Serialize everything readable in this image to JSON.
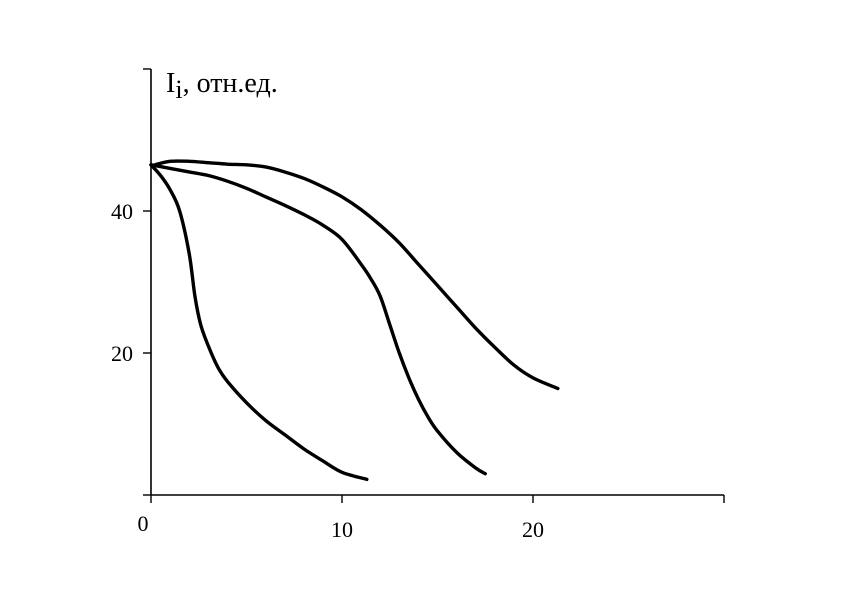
{
  "chart_data": {
    "type": "line",
    "title": "",
    "xlabel": "",
    "ylabel": {
      "main": "I",
      "subscript": "i",
      "rest": ", отн.ед."
    },
    "xlim": [
      0,
      30
    ],
    "ylim": [
      0,
      60
    ],
    "x_ticks": [
      0,
      10,
      20,
      30
    ],
    "x_tick_labels": [
      "0",
      "10",
      "20",
      ""
    ],
    "y_ticks": [
      0,
      20,
      40,
      60
    ],
    "y_tick_labels": [
      "",
      "20",
      "40",
      ""
    ],
    "grid": false,
    "legend": "none",
    "series": [
      {
        "color": "#000000",
        "x": [
          0,
          0.5,
          1.0,
          1.5,
          2.0,
          2.3,
          2.6,
          3.0,
          3.5,
          4.0,
          5.0,
          6.0,
          7.0,
          8.0,
          9.0,
          10.0,
          11.3
        ],
        "y": [
          46.5,
          45,
          43,
          40,
          34,
          28,
          24,
          21,
          18,
          16,
          13,
          10.5,
          8.5,
          6.5,
          4.8,
          3.2,
          2.2
        ]
      },
      {
        "color": "#000000",
        "x": [
          0,
          1,
          2,
          3,
          4,
          5,
          6,
          7,
          8,
          9,
          10,
          11,
          11.5,
          12,
          12.5,
          13,
          13.5,
          14,
          14.5,
          15,
          16,
          17,
          17.5
        ],
        "y": [
          46.5,
          46,
          45.5,
          45,
          44.2,
          43.2,
          42,
          40.8,
          39.5,
          38,
          36,
          32.5,
          30.5,
          28,
          24,
          20,
          16.5,
          13.5,
          11,
          9,
          6,
          3.8,
          3
        ]
      },
      {
        "color": "#000000",
        "x": [
          0.2,
          1,
          2,
          3,
          4,
          5,
          6,
          7,
          8,
          9,
          10,
          11,
          12,
          13,
          14,
          15,
          16,
          17,
          18,
          19,
          20,
          21.3
        ],
        "y": [
          46.5,
          47,
          47,
          46.8,
          46.6,
          46.5,
          46.2,
          45.5,
          44.6,
          43.4,
          42,
          40.2,
          38,
          35.5,
          32.5,
          29.5,
          26.5,
          23.5,
          20.8,
          18.3,
          16.5,
          15
        ]
      }
    ]
  }
}
